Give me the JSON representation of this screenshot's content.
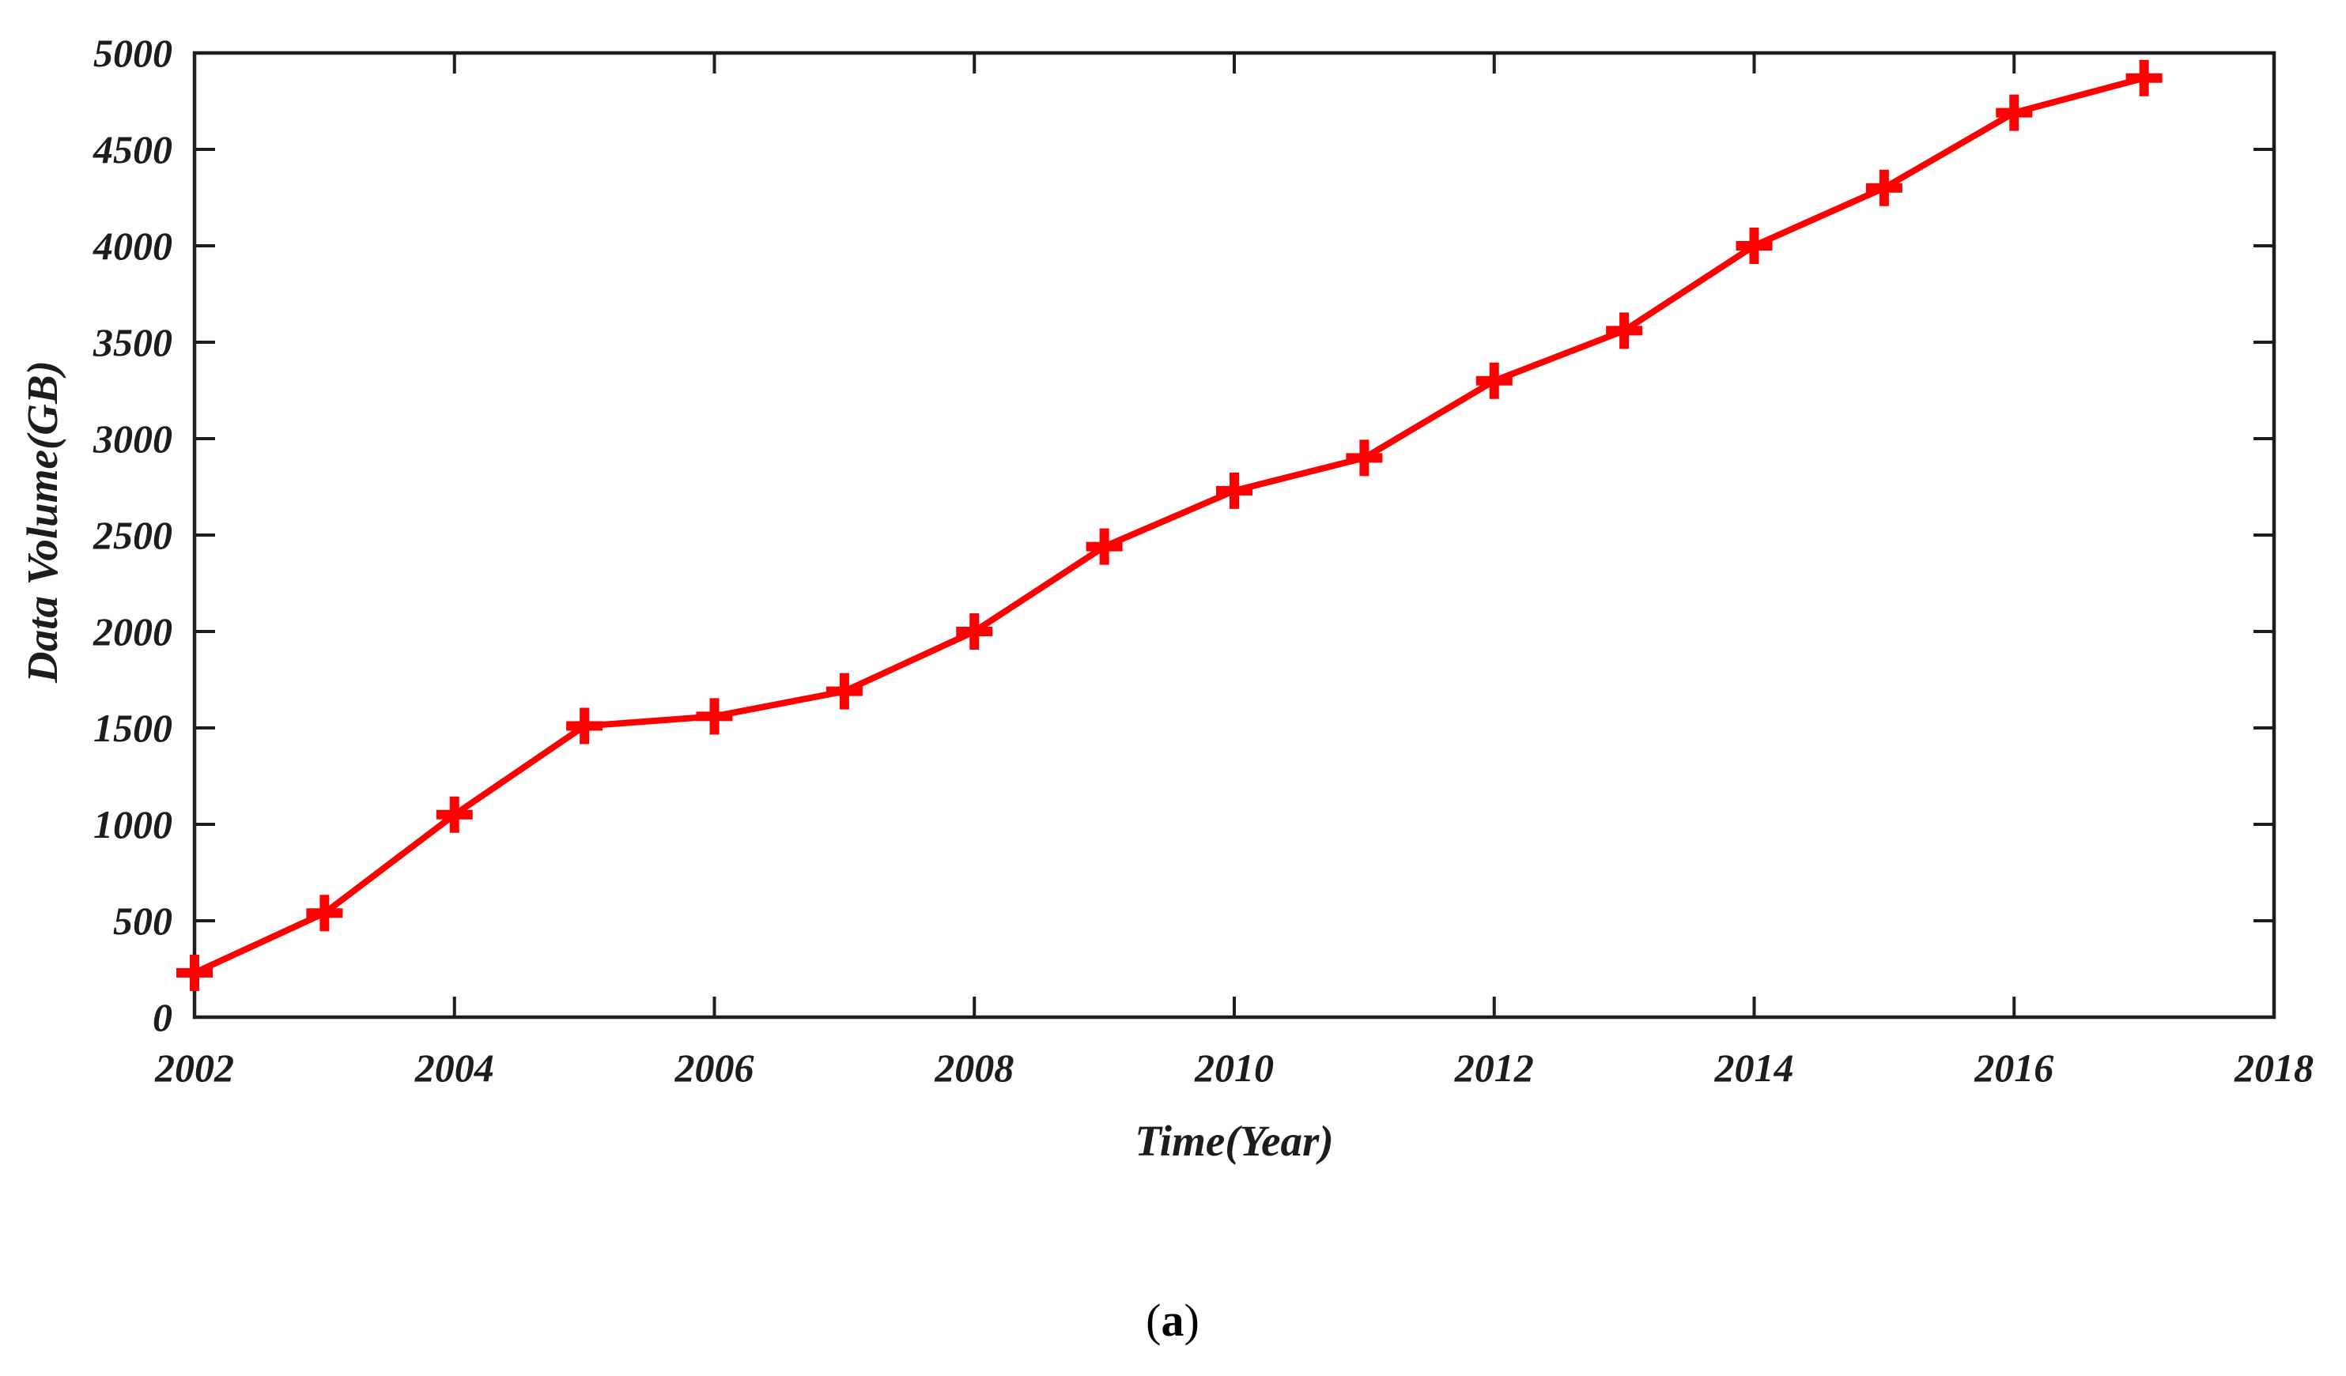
{
  "figure": {
    "caption": "(a)",
    "background_color": "#ffffff"
  },
  "chart_data": {
    "type": "line",
    "title": "",
    "xlabel": "Time(Year)",
    "ylabel": "Data Volume(GB)",
    "x": [
      2002,
      2003,
      2004,
      2005,
      2006,
      2007,
      2008,
      2009,
      2010,
      2011,
      2012,
      2013,
      2014,
      2015,
      2016,
      2017
    ],
    "y": [
      230,
      540,
      1050,
      1510,
      1560,
      1690,
      2000,
      2440,
      2730,
      2900,
      3300,
      3560,
      4000,
      4300,
      4690,
      4870
    ],
    "series_name": "Data Volume",
    "xlim": [
      2002,
      2018
    ],
    "ylim": [
      0,
      5000
    ],
    "x_ticks": [
      2002,
      2004,
      2006,
      2008,
      2010,
      2012,
      2014,
      2016,
      2018
    ],
    "y_ticks": [
      0,
      500,
      1000,
      1500,
      2000,
      2500,
      3000,
      3500,
      4000,
      4500,
      5000
    ],
    "grid": false,
    "legend": null,
    "marker": "plus",
    "line_color": "#ff0000",
    "axis_color": "#1d1d1d"
  }
}
